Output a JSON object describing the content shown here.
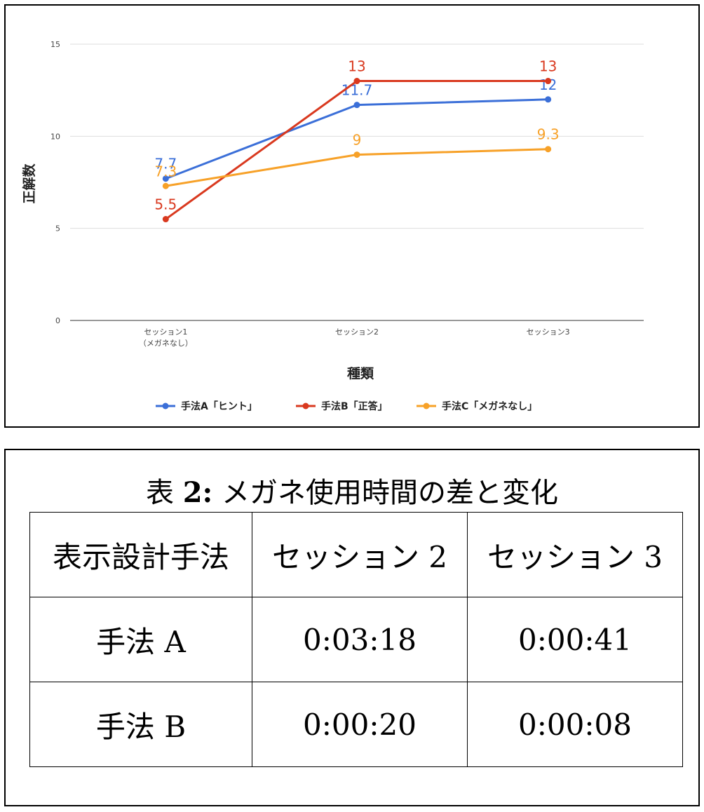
{
  "chart_data": {
    "type": "line",
    "categories": [
      "セッション1\n（メガネなし）",
      "セッション2",
      "セッション3"
    ],
    "xlabel": "種類",
    "ylabel": "正解数",
    "ylim": [
      0,
      15
    ],
    "yticks": [
      "0",
      "5",
      "10",
      "15"
    ],
    "grid": true,
    "legend_position": "bottom",
    "series": [
      {
        "name": "手法A「ヒント」",
        "color": "#3b6fd8",
        "values": [
          7.7,
          11.7,
          12
        ],
        "labels": [
          "7.7",
          "11.7",
          "12"
        ]
      },
      {
        "name": "手法B「正答」",
        "color": "#d9391f",
        "values": [
          5.5,
          13,
          13
        ],
        "labels": [
          "5.5",
          "13",
          "13"
        ]
      },
      {
        "name": "手法C「メガネなし」",
        "color": "#f7a128",
        "values": [
          7.3,
          9,
          9.3
        ],
        "labels": [
          "7.3",
          "9",
          "9.3"
        ]
      }
    ]
  },
  "table": {
    "caption_prefix": "表",
    "caption_number": "2:",
    "caption_text": "メガネ使用時間の差と変化",
    "headers": [
      "表示設計手法",
      "セッション 2",
      "セッション 3"
    ],
    "rows": [
      [
        "手法 A",
        "0:03:18",
        "0:00:41"
      ],
      [
        "手法 B",
        "0:00:20",
        "0:00:08"
      ]
    ]
  }
}
